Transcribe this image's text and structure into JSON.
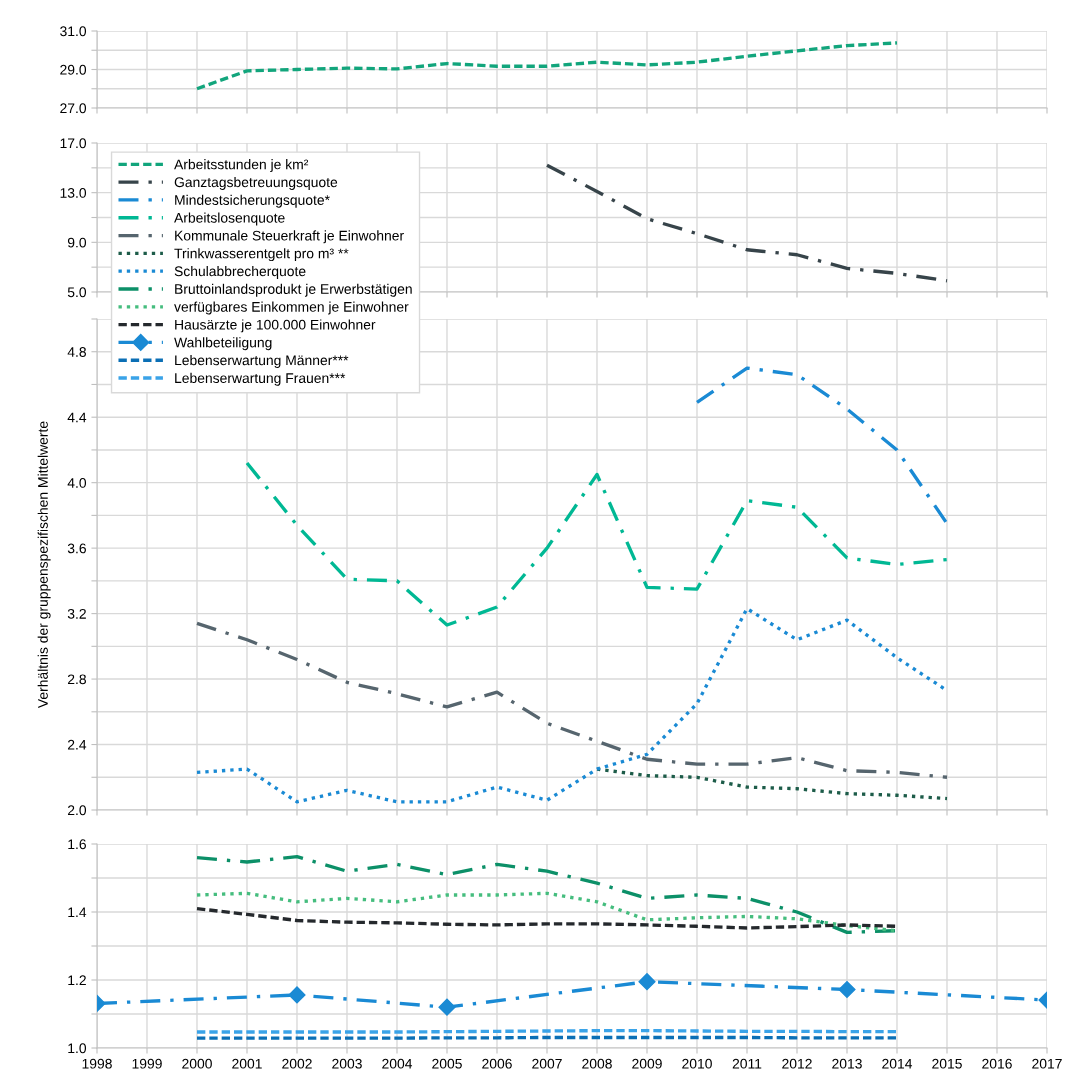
{
  "chart_data": [
    {
      "type": "line",
      "xlim": [
        1998,
        2017
      ],
      "xticks": [
        1998,
        1999,
        2000,
        2001,
        2002,
        2003,
        2004,
        2005,
        2006,
        2007,
        2008,
        2009,
        2010,
        2011,
        2012,
        2013,
        2014,
        2015,
        2016,
        2017
      ],
      "ylim": [
        27,
        31
      ],
      "yticks": [
        {
          "value": 27,
          "label": "27.0"
        },
        {
          "value": 28,
          "label": null
        },
        {
          "value": 29,
          "label": "29.0"
        },
        {
          "value": 30,
          "label": null
        },
        {
          "value": 31,
          "label": "31.0"
        }
      ],
      "grid": true,
      "tick_labels": "y",
      "series": [
        {
          "name": "Arbeitsstunden je km²",
          "color": "#12a57c",
          "line_style": "dashed",
          "x": [
            2000,
            2001,
            2002,
            2003,
            2004,
            2005,
            2006,
            2007,
            2008,
            2009,
            2010,
            2011,
            2012,
            2013,
            2014
          ],
          "values": [
            28.0,
            28.93,
            29.0,
            29.07,
            29.03,
            29.31,
            29.17,
            29.17,
            29.38,
            29.24,
            29.38,
            29.69,
            29.97,
            30.24,
            30.38
          ]
        }
      ]
    },
    {
      "type": "line",
      "xlim": [
        1998,
        2017
      ],
      "xticks": [
        1998,
        1999,
        2000,
        2001,
        2002,
        2003,
        2004,
        2005,
        2006,
        2007,
        2008,
        2009,
        2010,
        2011,
        2012,
        2013,
        2014,
        2015,
        2016,
        2017
      ],
      "ylim": [
        5,
        17
      ],
      "yticks": [
        {
          "value": 5,
          "label": "5.0"
        },
        {
          "value": 7,
          "label": null
        },
        {
          "value": 9,
          "label": "9.0"
        },
        {
          "value": 11,
          "label": null
        },
        {
          "value": 13,
          "label": "13.0"
        },
        {
          "value": 15,
          "label": null
        },
        {
          "value": 17,
          "label": "17.0"
        }
      ],
      "grid": true,
      "tick_labels": "y",
      "legend": "top left",
      "series": [
        {
          "name": "Ganztagsbetreuungsquote",
          "color": "#37444a",
          "line_style": "dashdot",
          "x": [
            2007,
            2008,
            2009,
            2010,
            2011,
            2012,
            2013,
            2014,
            2015
          ],
          "values": [
            15.2,
            13.1,
            10.9,
            9.7,
            8.4,
            8.0,
            6.9,
            6.5,
            5.9
          ]
        }
      ]
    },
    {
      "type": "line",
      "xlim": [
        1998,
        2017
      ],
      "xticks": [
        1998,
        1999,
        2000,
        2001,
        2002,
        2003,
        2004,
        2005,
        2006,
        2007,
        2008,
        2009,
        2010,
        2011,
        2012,
        2013,
        2014,
        2015,
        2016,
        2017
      ],
      "ylim": [
        2.0,
        5.0
      ],
      "yticks": [
        {
          "value": 2.0,
          "label": "2.0"
        },
        {
          "value": 2.2,
          "label": null
        },
        {
          "value": 2.4,
          "label": "2.4"
        },
        {
          "value": 2.6,
          "label": null
        },
        {
          "value": 2.8,
          "label": "2.8"
        },
        {
          "value": 3.0,
          "label": null
        },
        {
          "value": 3.2,
          "label": "3.2"
        },
        {
          "value": 3.4,
          "label": null
        },
        {
          "value": 3.6,
          "label": "3.6"
        },
        {
          "value": 3.8,
          "label": null
        },
        {
          "value": 4.0,
          "label": "4.0"
        },
        {
          "value": 4.2,
          "label": null
        },
        {
          "value": 4.4,
          "label": "4.4"
        },
        {
          "value": 4.6,
          "label": null
        },
        {
          "value": 4.8,
          "label": "4.8"
        },
        {
          "value": 5.0,
          "label": null
        }
      ],
      "grid": true,
      "tick_labels": "y",
      "legend": "top left",
      "ylabel": "Verhältnis der gruppenspezifischen Mittelwerte",
      "series": [
        {
          "name": "Mindestsicherungsquote*",
          "color": "#1a8ad4",
          "line_style": "dashdot",
          "x": [
            2010,
            2011,
            2012,
            2013,
            2014,
            2015
          ],
          "values": [
            4.49,
            4.7,
            4.66,
            4.45,
            4.2,
            3.75
          ]
        },
        {
          "name": "Arbeitslosenquote",
          "color": "#00b894",
          "line_style": "dashdot",
          "x": [
            2001,
            2002,
            2003,
            2004,
            2005,
            2006,
            2007,
            2008,
            2009,
            2010,
            2011,
            2012,
            2013,
            2014,
            2015
          ],
          "values": [
            4.12,
            3.74,
            3.41,
            3.4,
            3.13,
            3.24,
            3.6,
            4.05,
            3.36,
            3.35,
            3.89,
            3.85,
            3.54,
            3.5,
            3.53
          ]
        },
        {
          "name": "Kommunale Steuerkraft je Einwohner",
          "color": "#56656e",
          "line_style": "dashdot",
          "x": [
            2000,
            2001,
            2002,
            2003,
            2004,
            2005,
            2006,
            2007,
            2008,
            2009,
            2010,
            2011,
            2012,
            2013,
            2014,
            2015
          ],
          "values": [
            3.14,
            3.04,
            2.92,
            2.78,
            2.71,
            2.63,
            2.72,
            2.53,
            2.42,
            2.31,
            2.28,
            2.28,
            2.32,
            2.24,
            2.23,
            2.2
          ]
        },
        {
          "name": "Trinkwasserentgelt pro m³ **",
          "color": "#1d5c49",
          "line_style": "dotted",
          "x": [
            2008,
            2009,
            2010,
            2011,
            2012,
            2013,
            2014,
            2015
          ],
          "values": [
            2.25,
            2.21,
            2.2,
            2.14,
            2.13,
            2.1,
            2.09,
            2.07
          ]
        },
        {
          "name": "Schulabbrecherquote",
          "color": "#1a8ad4",
          "line_style": "dotted",
          "x": [
            2000,
            2001,
            2002,
            2003,
            2004,
            2005,
            2006,
            2007,
            2008,
            2009,
            2010,
            2011,
            2012,
            2013,
            2014,
            2015
          ],
          "values": [
            2.23,
            2.25,
            2.05,
            2.12,
            2.05,
            2.05,
            2.14,
            2.06,
            2.25,
            2.34,
            2.65,
            3.23,
            3.04,
            3.16,
            2.93,
            2.73
          ]
        }
      ]
    },
    {
      "type": "line",
      "xlim": [
        1998,
        2017
      ],
      "xticks": [
        1998,
        1999,
        2000,
        2001,
        2002,
        2003,
        2004,
        2005,
        2006,
        2007,
        2008,
        2009,
        2010,
        2011,
        2012,
        2013,
        2014,
        2015,
        2016,
        2017
      ],
      "ylim": [
        1.0,
        1.6
      ],
      "yticks": [
        {
          "value": 1.0,
          "label": "1.0"
        },
        {
          "value": 1.1,
          "label": null
        },
        {
          "value": 1.2,
          "label": "1.2"
        },
        {
          "value": 1.3,
          "label": null
        },
        {
          "value": 1.4,
          "label": "1.4"
        },
        {
          "value": 1.5,
          "label": null
        },
        {
          "value": 1.6,
          "label": "1.6"
        }
      ],
      "grid": true,
      "legend": "top left",
      "series": [
        {
          "name": "Bruttoinlandsprodukt je Erwerbstätigen",
          "color": "#0c9068",
          "line_style": "dashdot",
          "x": [
            2000,
            2001,
            2002,
            2003,
            2004,
            2005,
            2006,
            2007,
            2008,
            2009,
            2010,
            2011,
            2012,
            2013,
            2014
          ],
          "values": [
            1.56,
            1.547,
            1.563,
            1.52,
            1.54,
            1.51,
            1.54,
            1.52,
            1.485,
            1.44,
            1.45,
            1.44,
            1.4,
            1.34,
            1.345
          ]
        },
        {
          "name": "verfügbares Einkommen je Einwohner",
          "color": "#45bd7e",
          "line_style": "dotted",
          "x": [
            2000,
            2001,
            2002,
            2003,
            2004,
            2005,
            2006,
            2007,
            2008,
            2009,
            2010,
            2011,
            2012,
            2013,
            2014
          ],
          "values": [
            1.45,
            1.455,
            1.43,
            1.44,
            1.43,
            1.45,
            1.45,
            1.455,
            1.43,
            1.377,
            1.383,
            1.387,
            1.38,
            1.36,
            1.345
          ]
        },
        {
          "name": "Hausärzte je 100.000 Einwohner",
          "color": "#25292d",
          "line_style": "dashed",
          "x": [
            2000,
            2001,
            2002,
            2003,
            2004,
            2005,
            2006,
            2007,
            2008,
            2009,
            2010,
            2011,
            2012,
            2013,
            2014
          ],
          "values": [
            1.41,
            1.393,
            1.375,
            1.37,
            1.368,
            1.364,
            1.362,
            1.365,
            1.365,
            1.362,
            1.358,
            1.353,
            1.357,
            1.362,
            1.358
          ]
        },
        {
          "name": "Wahlbeteiligung",
          "color": "#1a8ad4",
          "line_style": "dashdot",
          "marker": "diamond",
          "x": [
            1998,
            2002,
            2005,
            2009,
            2013,
            2017
          ],
          "values": [
            1.131,
            1.156,
            1.12,
            1.195,
            1.172,
            1.141
          ]
        },
        {
          "name": "Lebenserwartung Männer***",
          "color": "#0b6fb5",
          "line_style": "dashed",
          "x": [
            2000,
            2001,
            2002,
            2003,
            2004,
            2005,
            2006,
            2007,
            2008,
            2009,
            2010,
            2011,
            2012,
            2013,
            2014
          ],
          "values": [
            1.029,
            1.029,
            1.029,
            1.029,
            1.029,
            1.03,
            1.03,
            1.031,
            1.031,
            1.031,
            1.031,
            1.031,
            1.03,
            1.03,
            1.03
          ]
        },
        {
          "name": "Lebenserwartung Frauen***",
          "color": "#3aa3e8",
          "line_style": "dashed",
          "x": [
            2000,
            2001,
            2002,
            2003,
            2004,
            2005,
            2006,
            2007,
            2008,
            2009,
            2010,
            2011,
            2012,
            2013,
            2014
          ],
          "values": [
            1.047,
            1.047,
            1.047,
            1.047,
            1.047,
            1.048,
            1.049,
            1.05,
            1.051,
            1.051,
            1.05,
            1.049,
            1.049,
            1.048,
            1.048
          ]
        }
      ]
    }
  ]
}
